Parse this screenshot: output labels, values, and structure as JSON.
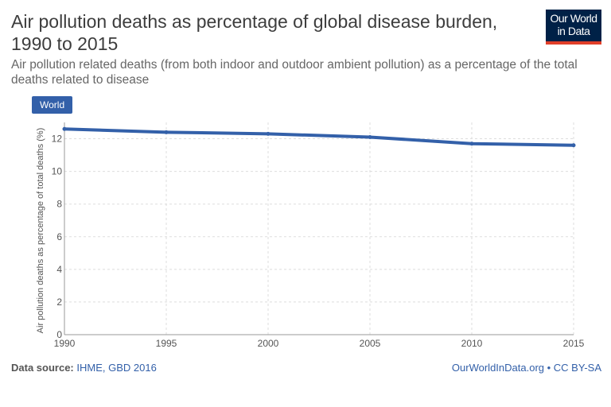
{
  "header": {
    "title": "Air pollution deaths as percentage of global disease burden, 1990 to 2015",
    "subtitle_line1": "Air pollution related deaths (from both indoor and outdoor ambient pollution) as a percentage of the total",
    "subtitle_line2": "deaths related to disease"
  },
  "logo": {
    "line1": "Our World",
    "line2": "in Data",
    "bg_color": "#002147",
    "accent_color": "#e13f29"
  },
  "legend": {
    "button_label": "World",
    "color": "#3360a9"
  },
  "footer": {
    "source_label": "Data source:",
    "source_value": "IHME, GBD 2016",
    "credit": "OurWorldInData.org • CC BY-SA"
  },
  "chart_data": {
    "type": "line",
    "x": [
      1990,
      1995,
      2000,
      2005,
      2010,
      2015
    ],
    "series": [
      {
        "name": "World",
        "color": "#3360a9",
        "values": [
          12.6,
          12.4,
          12.3,
          12.1,
          11.7,
          11.6
        ]
      }
    ],
    "ylabel": "Air pollution deaths as percentage of total deaths (%)",
    "xlim": [
      1990,
      2015
    ],
    "ylim": [
      0,
      13
    ],
    "yticks": [
      0,
      2,
      4,
      6,
      8,
      10,
      12
    ],
    "xticks": [
      1990,
      1995,
      2000,
      2005,
      2010,
      2015
    ],
    "grid": "dotted"
  }
}
